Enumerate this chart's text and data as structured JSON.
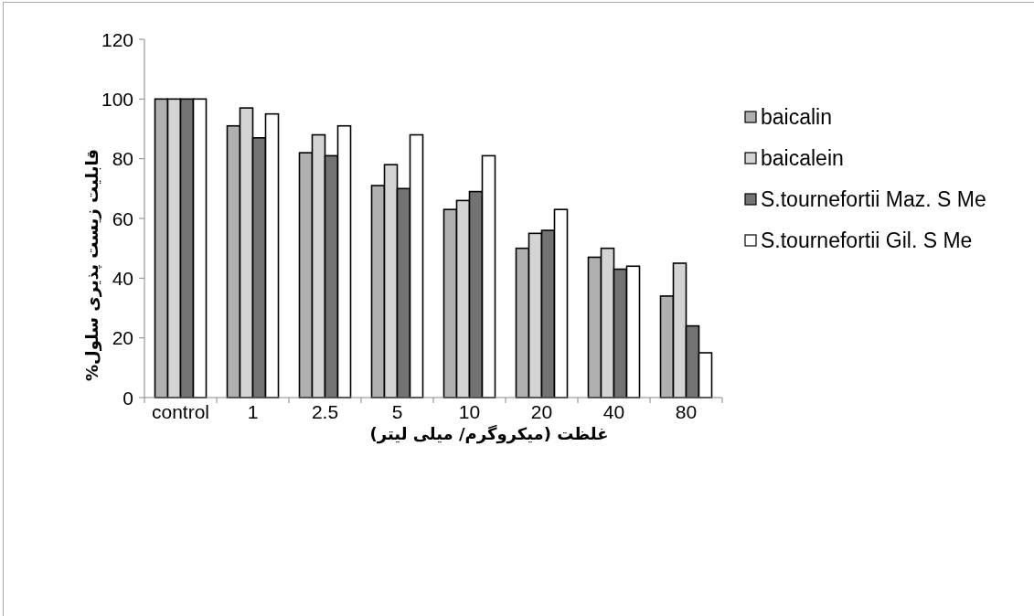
{
  "chart_data": {
    "type": "bar",
    "xlabel": "غلظت (میکروگرم/ میلی لیتر)",
    "ylabel": "قابلیت زیست پذیری سلول%",
    "categories": [
      "control",
      "1",
      "2.5",
      "5",
      "10",
      "20",
      "40",
      "80"
    ],
    "series": [
      {
        "name": "baicalin",
        "color": "#b0b0b0",
        "values": [
          100,
          91,
          82,
          71,
          63,
          50,
          47,
          34
        ]
      },
      {
        "name": "baicalein",
        "color": "#d4d4d4",
        "values": [
          100,
          97,
          88,
          78,
          66,
          55,
          50,
          45
        ]
      },
      {
        "name": "S.tournefortii Maz. S Me",
        "color": "#737373",
        "values": [
          100,
          87,
          81,
          70,
          69,
          56,
          43,
          24
        ]
      },
      {
        "name": "S.tournefortii Gil. S Me",
        "color": "#ffffff",
        "values": [
          100,
          95,
          91,
          88,
          81,
          63,
          44,
          15
        ]
      }
    ],
    "ylim": [
      0,
      120
    ],
    "yticks": [
      0,
      20,
      40,
      60,
      80,
      100,
      120
    ],
    "legend": "right"
  }
}
